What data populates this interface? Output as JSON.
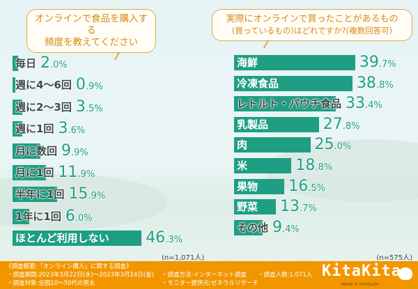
{
  "chart_data": [
    {
      "type": "bar",
      "orientation": "horizontal",
      "title": "オンラインで食品を購入する頻度を教えてください",
      "categories": [
        "毎日",
        "週に4〜6回",
        "週に2〜3回",
        "週に1回",
        "月に数回",
        "月に1回",
        "半年に1回",
        "1年に1回",
        "ほとんど利用しない"
      ],
      "values": [
        2.0,
        0.9,
        3.5,
        3.6,
        9.9,
        11.9,
        15.9,
        6.0,
        46.3
      ],
      "unit": "%",
      "note": "(n=1,071人)"
    },
    {
      "type": "bar",
      "orientation": "horizontal",
      "title": "実際にオンラインで買ったことがあるもの(買っているもの)はどれですか?(複数回答可)",
      "categories": [
        "海鮮",
        "冷凍食品",
        "レトルト・パウチ食品",
        "乳製品",
        "肉",
        "米",
        "果物",
        "野菜",
        "その他"
      ],
      "values": [
        39.7,
        38.8,
        33.4,
        27.8,
        25.0,
        18.8,
        16.5,
        13.7,
        9.4
      ],
      "unit": "%",
      "note": "(n=575人)"
    }
  ],
  "bubbles": {
    "left_line1": "オンラインで食品を購入する",
    "left_line2": "頻度を教えてください",
    "right_line1": "実際にオンラインで買ったことがあるもの",
    "right_line2": "(買っているもの)はどれですか?(複数回答可)"
  },
  "footer": {
    "heading": "《調査概要:「オンライン購入」に関する調査》",
    "period": "・調査期間:2023年3月22日(水)〜2023年3月24日(金)",
    "target": "・調査対象:全国10〜50代の男女",
    "method": "・調査方法:インターネット調査",
    "provider": "・モニター提供元:ゼネラルリサーチ",
    "count": "・調査人数:1,071人",
    "logo": "KitaKita",
    "logo_sub": "Made in Hokkaido"
  },
  "colors": {
    "bar": "#1f9e84",
    "footer": "#f29600",
    "bubble_text": "#d98a12"
  }
}
